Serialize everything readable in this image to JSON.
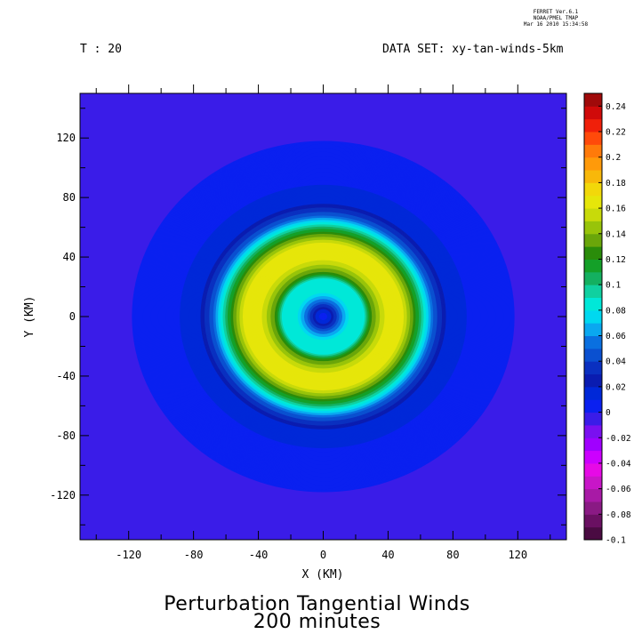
{
  "stamp": {
    "line1": "FERRET  Ver.6.1",
    "line2": "NOAA/PMEL TMAP",
    "line3": "Mar 16 2010 15:34:58"
  },
  "header": {
    "left": "T : 20",
    "right": "DATA SET: xy-tan-winds-5km"
  },
  "title": {
    "line1": "Perturbation Tangential Winds",
    "line2": "200 minutes"
  },
  "chart_data": {
    "type": "heatmap",
    "xlabel": "X (KM)",
    "ylabel": "Y (KM)",
    "xlim": [
      -150,
      150
    ],
    "ylim": [
      -150,
      150
    ],
    "x_ticks": [
      -120,
      -80,
      -40,
      0,
      40,
      80,
      120
    ],
    "y_ticks": [
      120,
      80,
      40,
      0,
      -40,
      -80,
      -120
    ],
    "field": {
      "description_values": "perturbation tangential wind, radially symmetric about origin",
      "background_value": -0.01,
      "radial_profile": [
        {
          "r": 0,
          "value": 0.0
        },
        {
          "r": 5,
          "value": 0.02
        },
        {
          "r": 12,
          "value": 0.06
        },
        {
          "r": 18,
          "value": 0.09
        },
        {
          "r": 25,
          "value": 0.08
        },
        {
          "r": 30,
          "value": 0.13
        },
        {
          "r": 38,
          "value": 0.16
        },
        {
          "r": 50,
          "value": 0.16
        },
        {
          "r": 56,
          "value": 0.13
        },
        {
          "r": 62,
          "value": 0.09
        },
        {
          "r": 68,
          "value": 0.05
        },
        {
          "r": 76,
          "value": 0.02
        },
        {
          "r": 95,
          "value": 0.005
        },
        {
          "r": 118,
          "value": 0.0
        }
      ]
    },
    "colorbar": {
      "levels": [
        -0.1,
        -0.09,
        -0.08,
        -0.07,
        -0.06,
        -0.05,
        -0.04,
        -0.03,
        -0.02,
        -0.01,
        0,
        0.01,
        0.02,
        0.03,
        0.04,
        0.05,
        0.06,
        0.07,
        0.08,
        0.09,
        0.1,
        0.11,
        0.12,
        0.13,
        0.14,
        0.15,
        0.16,
        0.17,
        0.18,
        0.19,
        0.2,
        0.21,
        0.22,
        0.23,
        0.24,
        0.25
      ],
      "labels": [
        "0.24",
        "0.22",
        "0.2",
        "0.18",
        "0.16",
        "0.14",
        "0.12",
        "0.1",
        "0.08",
        "0.06",
        "0.04",
        "0.02",
        "0",
        "-0.02",
        "-0.04",
        "-0.06",
        "-0.08",
        "-0.1"
      ],
      "label_values": [
        0.24,
        0.22,
        0.2,
        0.18,
        0.16,
        0.14,
        0.12,
        0.1,
        0.08,
        0.06,
        0.04,
        0.02,
        0,
        -0.02,
        -0.04,
        -0.06,
        -0.08,
        -0.1
      ],
      "colors": [
        "#4a0b42",
        "#6a1062",
        "#8a1a84",
        "#a81aa6",
        "#c816c8",
        "#e60ae6",
        "#cc00ff",
        "#a000ff",
        "#7a10f0",
        "#3a1ce8",
        "#0a20f0",
        "#0028d8",
        "#0a1cb0",
        "#0a30c0",
        "#0a50d0",
        "#0a70e0",
        "#0aa8f0",
        "#00d8f0",
        "#00e8d8",
        "#10d0a0",
        "#14b060",
        "#14a028",
        "#2a8c0a",
        "#6aa60a",
        "#98c40a",
        "#c8da0a",
        "#e6e60a",
        "#f2d80a",
        "#f8b80a",
        "#ff9a0a",
        "#ff7a0a",
        "#ff4a0a",
        "#f0200a",
        "#d00a0a",
        "#a00a0a",
        "#700a0a"
      ]
    }
  }
}
